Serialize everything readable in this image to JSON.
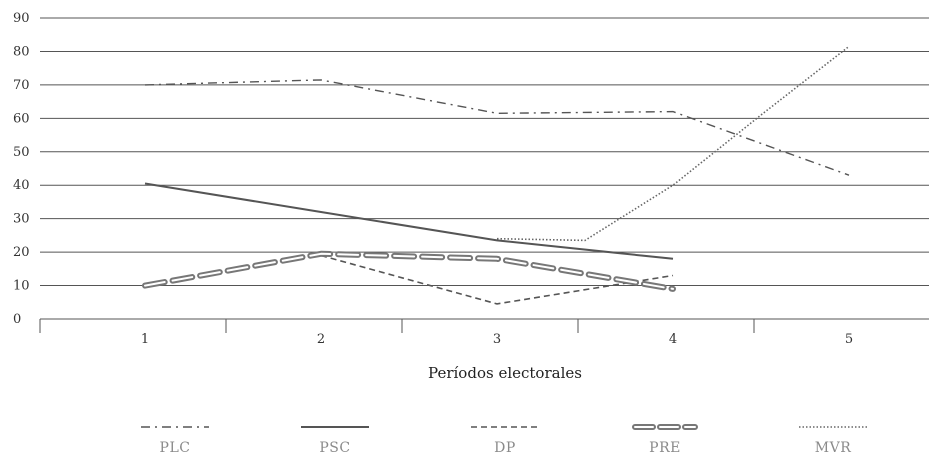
{
  "chart_data": {
    "type": "line",
    "title": "",
    "xlabel": "Períodos electorales",
    "ylabel": "",
    "categories": [
      "1",
      "2",
      "3",
      "4",
      "5"
    ],
    "ylim": [
      0,
      90
    ],
    "yticks": [
      "0",
      "10",
      "20",
      "30",
      "40",
      "50",
      "60",
      "70",
      "80",
      "90"
    ],
    "grid": true,
    "legend_position": "bottom",
    "series": [
      {
        "name": "PLC",
        "style": "dash-dot",
        "color": "#555555",
        "values": [
          70,
          71.5,
          61.5,
          62,
          43
        ]
      },
      {
        "name": "PSC",
        "style": "solid",
        "color": "#555555",
        "values": [
          40.5,
          32,
          23.5,
          18,
          null
        ]
      },
      {
        "name": "DP",
        "style": "dashed",
        "color": "#555555",
        "values": [
          null,
          19,
          4.5,
          13,
          null
        ]
      },
      {
        "name": "PRE",
        "style": "double-dashed",
        "color": "#777777",
        "values": [
          10,
          19.5,
          18,
          9,
          null
        ]
      },
      {
        "name": "MVR",
        "style": "dotted",
        "color": "#666666",
        "values": [
          null,
          null,
          24,
          23.5,
          40,
          61,
          81.5
        ],
        "x": [
          null,
          null,
          3,
          3.5,
          4,
          4.5,
          5
        ]
      }
    ]
  }
}
